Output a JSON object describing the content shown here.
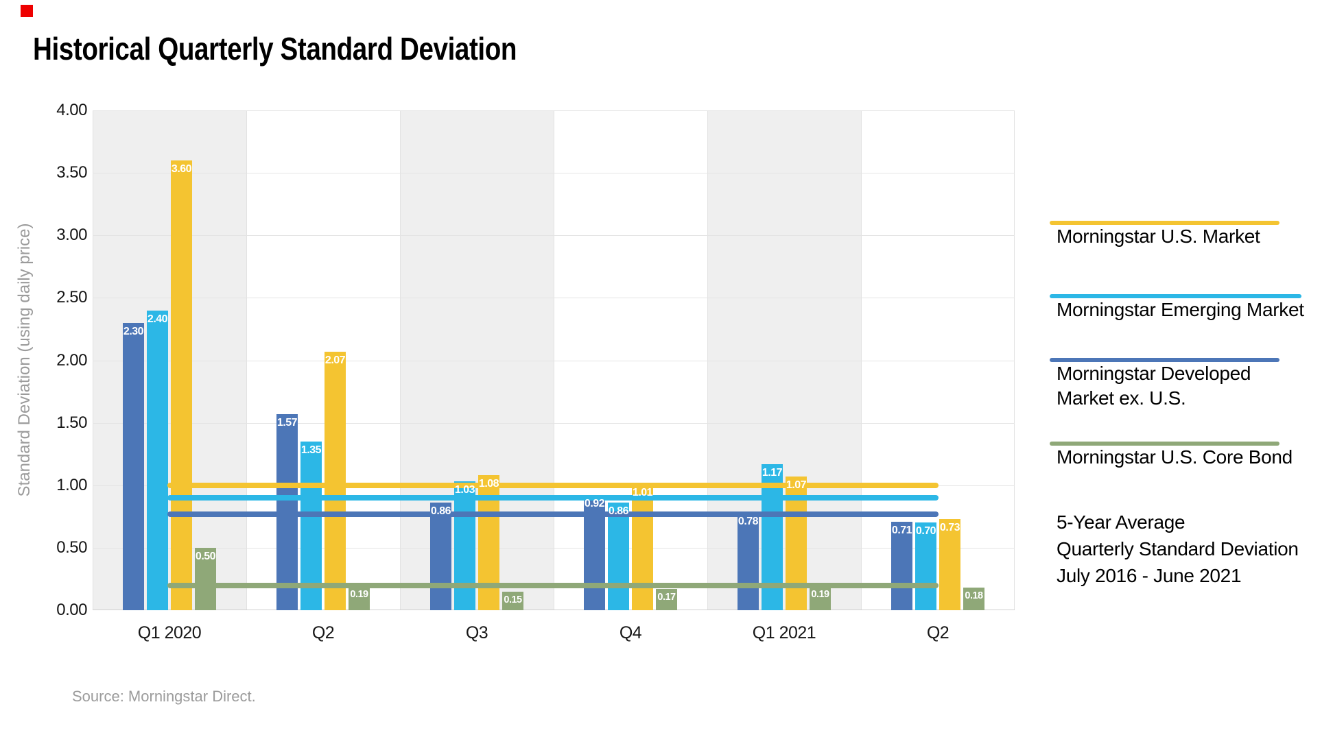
{
  "page": {
    "source": "Source: Morningstar Direct.",
    "brand_square_color": "#ee0000",
    "background_color": "#ffffff"
  },
  "chart_data": {
    "type": "bar",
    "title": "Historical Quarterly Standard Deviation",
    "ylabel": "Standard Deviation (using daily price)",
    "xlabel": "",
    "ylim": [
      0,
      4.0
    ],
    "ytick_step": 0.5,
    "ytick_labels": [
      "4.00",
      "3.50",
      "3.00",
      "2.50",
      "2.00",
      "1.50",
      "1.00",
      "0.50",
      "0.00"
    ],
    "grid": true,
    "alternating_band_colors": [
      "#efefef",
      "#ffffff"
    ],
    "legend_position": "right",
    "categories": [
      "Q1 2020",
      "Q2",
      "Q3",
      "Q4",
      "Q1 2021",
      "Q2"
    ],
    "series": [
      {
        "name": "Morningstar Developed Market ex. U.S.",
        "color": "#4c76b7",
        "values": [
          2.3,
          1.57,
          0.86,
          0.92,
          0.78,
          0.71
        ]
      },
      {
        "name": "Morningstar Emerging Market",
        "color": "#2cb7e6",
        "values": [
          2.4,
          1.35,
          1.03,
          0.86,
          1.17,
          0.7
        ]
      },
      {
        "name": "Morningstar U.S. Market",
        "color": "#f4c431",
        "values": [
          3.6,
          2.07,
          1.08,
          1.01,
          1.07,
          0.73
        ]
      },
      {
        "name": "Morningstar U.S. Core Bond",
        "color": "#8fa878",
        "values": [
          0.5,
          0.19,
          0.15,
          0.17,
          0.19,
          0.18
        ]
      }
    ],
    "average_lines": [
      {
        "series": "Morningstar U.S. Market",
        "color": "#f4c431",
        "value": 1.0
      },
      {
        "series": "Morningstar Emerging Market",
        "color": "#2cb7e6",
        "value": 0.9
      },
      {
        "series": "Morningstar Developed Market ex. U.S.",
        "color": "#4c76b7",
        "value": 0.77
      },
      {
        "series": "Morningstar U.S. Core Bond",
        "color": "#8fa878",
        "value": 0.2
      }
    ]
  },
  "legend": {
    "items": [
      {
        "label": "Morningstar U.S. Market",
        "color": "#f4c431"
      },
      {
        "label": "Morningstar Emerging Market",
        "color": "#2cb7e6"
      },
      {
        "label": "Morningstar Developed\nMarket ex. U.S.",
        "color": "#4c76b7"
      },
      {
        "label": "Morningstar U.S. Core Bond",
        "color": "#8fa878"
      }
    ],
    "note": "5-Year Average\nQuarterly Standard Deviation\nJuly 2016 - June 2021"
  }
}
